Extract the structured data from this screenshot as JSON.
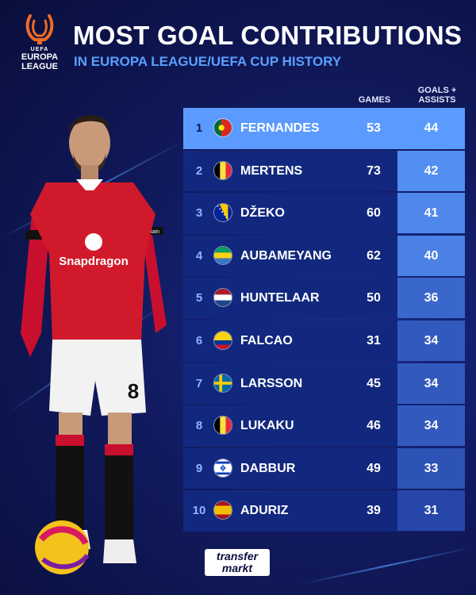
{
  "header": {
    "title": "MOST GOAL CONTRIBUTIONS",
    "subtitle": "IN EUROPA LEAGUE/UEFA CUP HISTORY"
  },
  "logo": {
    "org": "UEFA",
    "line1": "EUROPA",
    "line2": "LEAGUE"
  },
  "player_image": {
    "shirt_sponsor": "Snapdragon",
    "armband": "Captain",
    "shirt_number": "8"
  },
  "columns": {
    "games": "GAMES",
    "goals_assists": "GOALS + ASSISTS"
  },
  "footer": {
    "brand_line1": "transfer",
    "brand_line2": "markt"
  },
  "colors": {
    "background": "#111a5e",
    "row": "#12287e",
    "highlight": "#5b9bff",
    "accent_text": "#5aa0ff"
  },
  "chart_data": {
    "type": "table",
    "title": "MOST GOAL CONTRIBUTIONS",
    "subtitle": "IN EUROPA LEAGUE/UEFA CUP HISTORY",
    "columns": [
      "GAMES",
      "GOALS + ASSISTS"
    ],
    "rows": [
      {
        "rank": "1",
        "flag": "portugal",
        "name": "FERNANDES",
        "games": 53,
        "ga": 44
      },
      {
        "rank": "2",
        "flag": "belgium",
        "name": "MERTENS",
        "games": 73,
        "ga": 42
      },
      {
        "rank": "3",
        "flag": "bosnia",
        "name": "DŽEKO",
        "games": 60,
        "ga": 41
      },
      {
        "rank": "4",
        "flag": "gabon",
        "name": "AUBAMEYANG",
        "games": 62,
        "ga": 40
      },
      {
        "rank": "5",
        "flag": "netherlands",
        "name": "HUNTELAAR",
        "games": 50,
        "ga": 36
      },
      {
        "rank": "6",
        "flag": "colombia",
        "name": "FALCAO",
        "games": 31,
        "ga": 34
      },
      {
        "rank": "7",
        "flag": "sweden",
        "name": "LARSSON",
        "games": 45,
        "ga": 34
      },
      {
        "rank": "8",
        "flag": "belgium",
        "name": "LUKAKU",
        "games": 46,
        "ga": 34
      },
      {
        "rank": "9",
        "flag": "israel",
        "name": "DABBUR",
        "games": 49,
        "ga": 33
      },
      {
        "rank": "10",
        "flag": "spain",
        "name": "ADURIZ",
        "games": 39,
        "ga": 31
      }
    ]
  }
}
